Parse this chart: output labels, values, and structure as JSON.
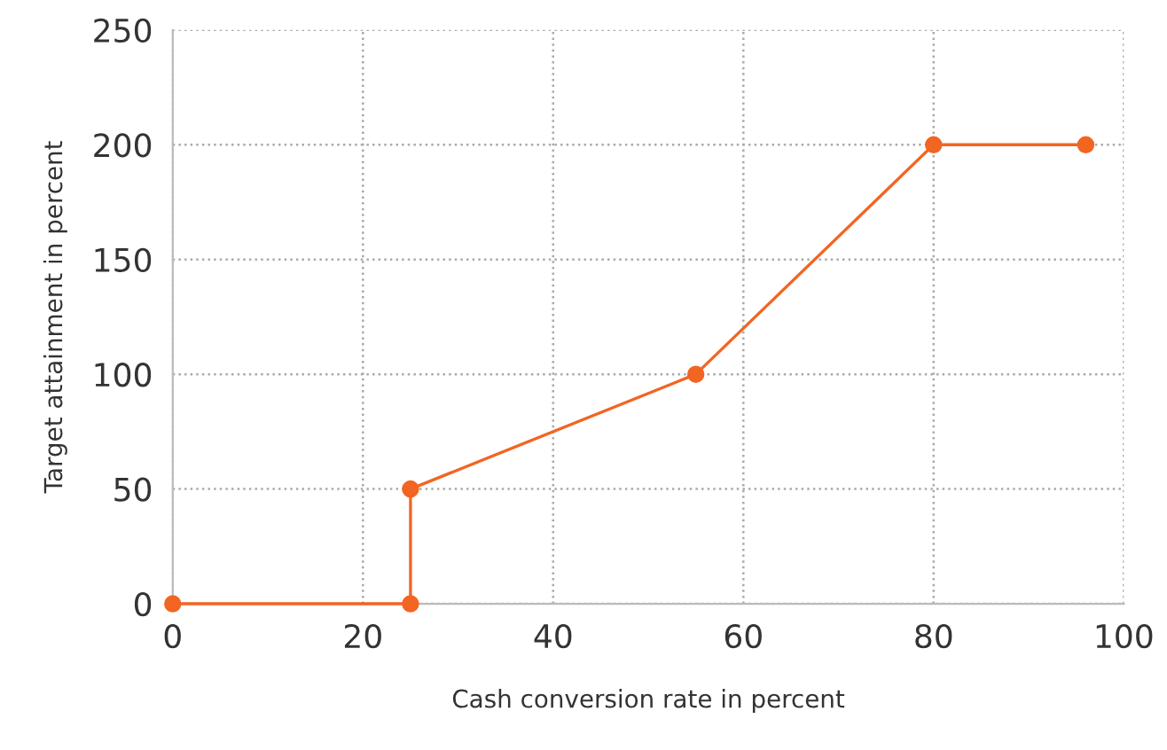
{
  "chart_data": {
    "type": "line",
    "xlabel": "Cash conversion rate in percent",
    "ylabel": "Target attainment in percent",
    "x": [
      0,
      25,
      25,
      55,
      80,
      96
    ],
    "series": [
      {
        "color": "#f26522",
        "values": [
          0,
          0,
          50,
          100,
          200,
          200
        ]
      }
    ],
    "xlim": [
      0,
      100
    ],
    "xticks": [
      0,
      20,
      40,
      60,
      80,
      100
    ],
    "ylim": [
      0,
      250
    ],
    "yticks": [
      0,
      50,
      100,
      150,
      200,
      250
    ],
    "grid": true,
    "marker": "circle",
    "line_style": "solid"
  }
}
